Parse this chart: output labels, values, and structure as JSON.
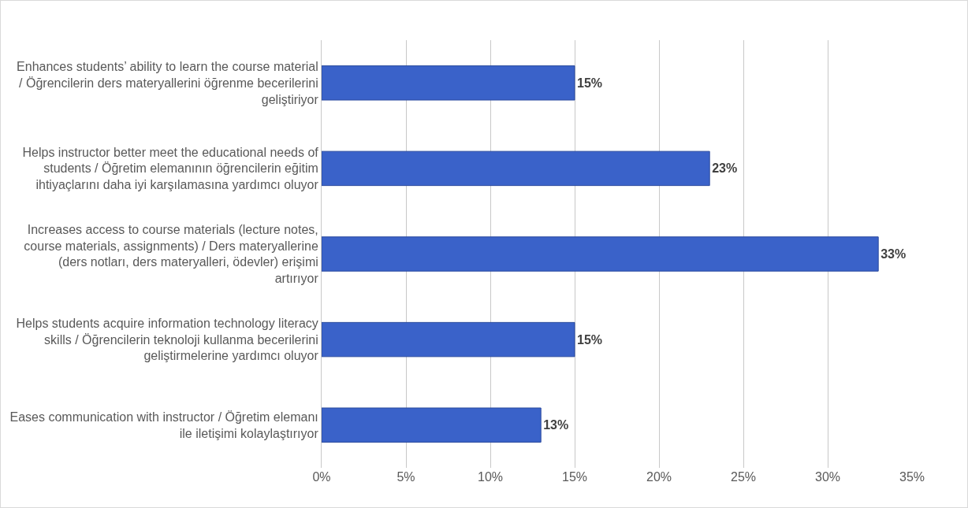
{
  "chart_data": {
    "type": "bar",
    "orientation": "horizontal",
    "categories": [
      "Enhances students’ ability to learn the course material / Öğrencilerin ders materyallerini öğrenme becerilerini geliştiriyor",
      "Helps instructor better meet the educational needs of students / Öğretim elemanının öğrencilerin eğitim ihtiyaçlarını daha iyi karşılamasına yardımcı oluyor",
      "Increases access to course materials (lecture notes, course materials, assignments) / Ders materyallerine (ders notları, ders materyalleri, ödevler) erişimi artırıyor",
      "Helps students acquire information technology literacy skills / Öğrencilerin teknoloji kullanma becerilerini geliştirmelerine yardımcı oluyor",
      "Eases communication with instructor / Öğretim elemanı ile iletişimi kolaylaştırıyor"
    ],
    "values": [
      15,
      23,
      33,
      15,
      13
    ],
    "value_labels": [
      "15%",
      "23%",
      "33%",
      "15%",
      "13%"
    ],
    "color": "#3a62c9",
    "xlim": [
      0,
      35
    ],
    "xticks": [
      {
        "value": 0,
        "label": "0%"
      },
      {
        "value": 5,
        "label": "5%"
      },
      {
        "value": 10,
        "label": "10%"
      },
      {
        "value": 15,
        "label": "15%"
      },
      {
        "value": 20,
        "label": "20%"
      },
      {
        "value": 25,
        "label": "25%"
      },
      {
        "value": 30,
        "label": "30%"
      },
      {
        "value": 35,
        "label": "35%"
      }
    ],
    "grid": "x"
  }
}
